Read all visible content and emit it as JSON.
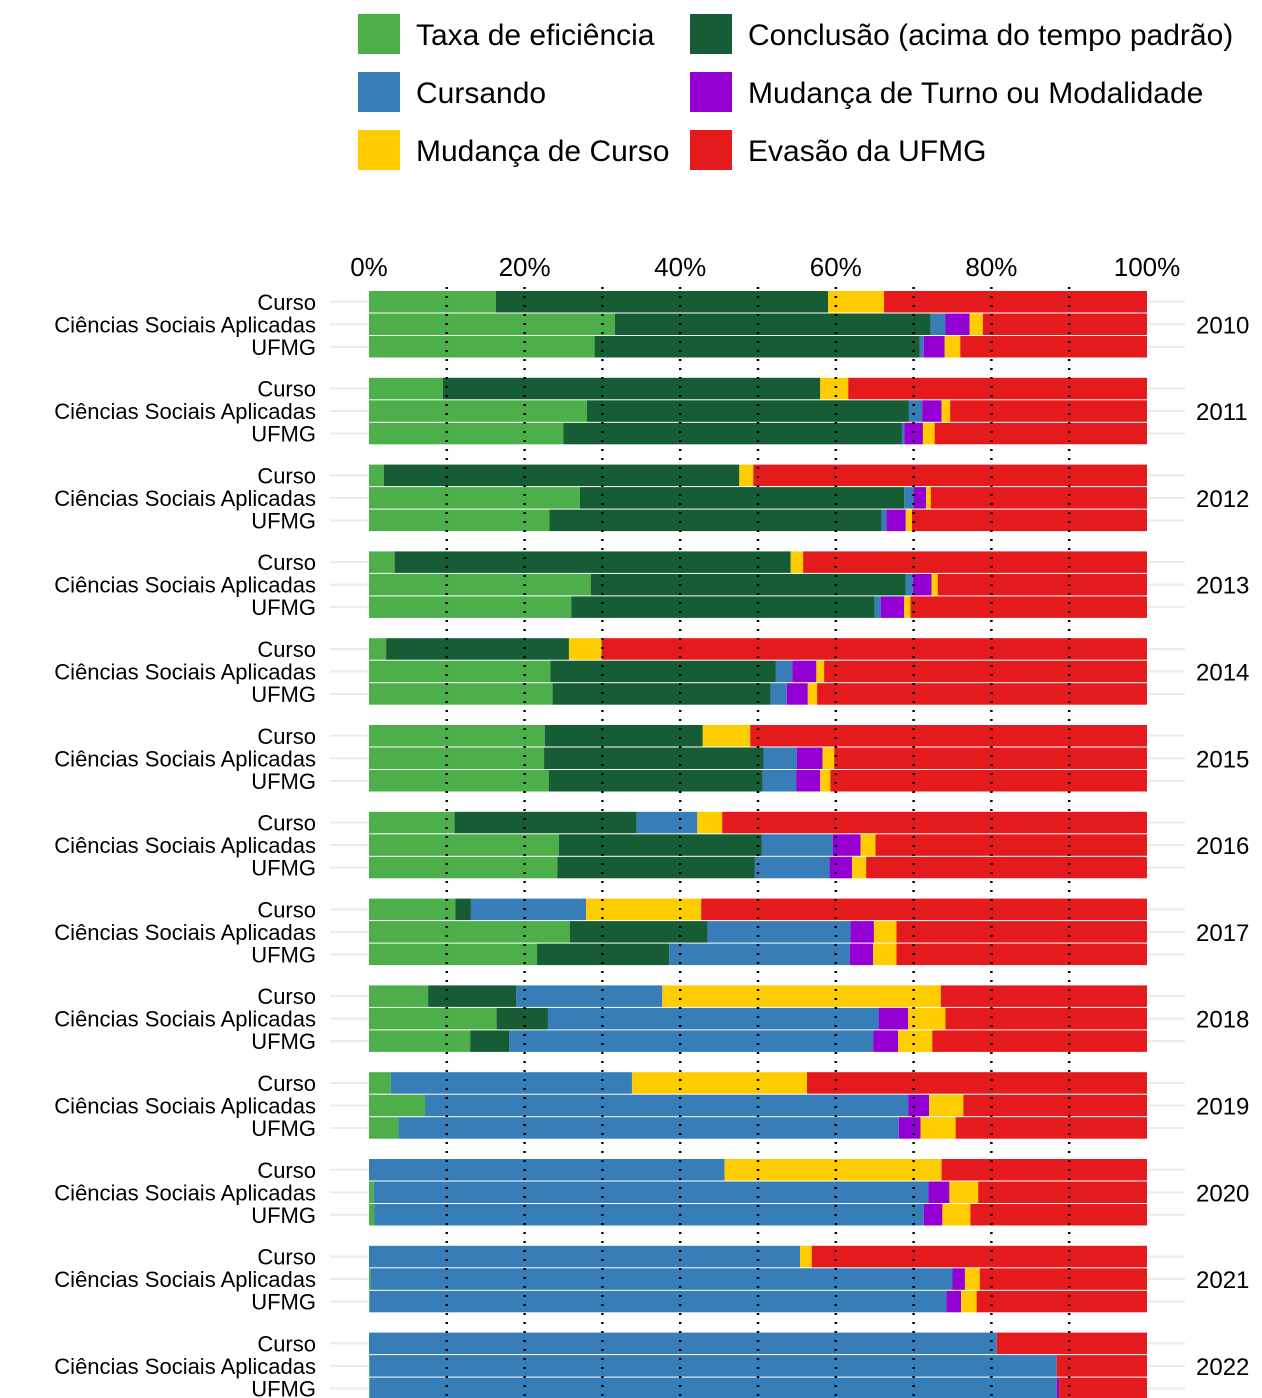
{
  "chart_data": {
    "type": "bar",
    "orientation": "horizontal",
    "stacked": true,
    "percent_scale": true,
    "xlim": [
      0,
      100
    ],
    "x_ticks": [
      "0%",
      "20%",
      "40%",
      "60%",
      "80%",
      "100%"
    ],
    "x_tick_values": [
      0,
      20,
      40,
      60,
      80,
      100
    ],
    "reference_lines": [
      10,
      20,
      30,
      40,
      50,
      60,
      70,
      80,
      90
    ],
    "grid": true,
    "legend_position": "top",
    "row_labels": [
      "Curso",
      "Ciências Sociais Aplicadas",
      "UFMG"
    ],
    "series": [
      {
        "key": "eficiencia",
        "name": "Taxa de eficiência",
        "color": "#4daf4a"
      },
      {
        "key": "conclusao",
        "name": "Conclusão (acima do tempo padrão)",
        "color": "#165c34"
      },
      {
        "key": "cursando",
        "name": "Cursando",
        "color": "#377eb8"
      },
      {
        "key": "turno",
        "name": "Mudança de Turno ou Modalidade",
        "color": "#9400d3"
      },
      {
        "key": "curso",
        "name": "Mudança de Curso",
        "color": "#ffcc00"
      },
      {
        "key": "evasao",
        "name": "Evasão da UFMG",
        "color": "#e41a1c"
      }
    ],
    "legend_order": [
      "eficiencia",
      "conclusao",
      "cursando",
      "turno",
      "curso",
      "evasao"
    ],
    "groups": [
      {
        "year": "2010",
        "rows": [
          [
            16.3,
            42.7,
            0,
            0,
            7.2,
            33.8
          ],
          [
            31.6,
            40.6,
            1.9,
            3.1,
            1.7,
            21.1
          ],
          [
            29.0,
            41.8,
            0.5,
            2.7,
            2.0,
            24.0
          ]
        ]
      },
      {
        "year": "2011",
        "rows": [
          [
            9.5,
            48.5,
            0,
            0,
            3.6,
            38.4
          ],
          [
            28.0,
            41.4,
            1.7,
            2.5,
            1.1,
            25.3
          ],
          [
            25.0,
            43.5,
            0.3,
            2.4,
            1.5,
            27.3
          ]
        ]
      },
      {
        "year": "2012",
        "rows": [
          [
            1.9,
            45.7,
            0,
            0,
            1.8,
            50.6
          ],
          [
            27.1,
            41.7,
            1.2,
            1.6,
            0.6,
            27.8
          ],
          [
            23.2,
            42.7,
            0.6,
            2.5,
            0.8,
            30.2
          ]
        ]
      },
      {
        "year": "2013",
        "rows": [
          [
            3.3,
            50.9,
            0,
            0,
            1.6,
            44.2
          ],
          [
            28.5,
            40.5,
            0.9,
            2.4,
            0.8,
            26.9
          ],
          [
            26.0,
            39.0,
            0.8,
            3.0,
            0.8,
            30.4
          ]
        ]
      },
      {
        "year": "2014",
        "rows": [
          [
            2.2,
            23.5,
            0,
            0,
            4.2,
            70.1
          ],
          [
            23.3,
            29.0,
            2.1,
            3.1,
            1.0,
            41.5
          ],
          [
            23.6,
            28.0,
            2.1,
            2.7,
            1.2,
            42.4
          ]
        ]
      },
      {
        "year": "2015",
        "rows": [
          [
            22.6,
            20.3,
            0,
            0,
            6.1,
            51.0
          ],
          [
            22.5,
            28.2,
            4.3,
            3.3,
            1.5,
            40.2
          ],
          [
            23.1,
            27.5,
            4.3,
            3.1,
            1.3,
            40.7
          ]
        ]
      },
      {
        "year": "2016",
        "rows": [
          [
            11.0,
            23.4,
            7.8,
            0,
            3.2,
            54.6
          ],
          [
            24.4,
            26.1,
            9.1,
            3.6,
            1.9,
            34.9
          ],
          [
            24.2,
            25.4,
            9.6,
            2.9,
            1.8,
            36.1
          ]
        ]
      },
      {
        "year": "2017",
        "rows": [
          [
            11.1,
            2.0,
            14.8,
            0,
            14.8,
            57.3
          ],
          [
            25.8,
            17.7,
            18.4,
            3.0,
            2.9,
            32.2
          ],
          [
            21.6,
            17.0,
            23.2,
            3.0,
            3.0,
            32.2
          ]
        ]
      },
      {
        "year": "2018",
        "rows": [
          [
            7.6,
            11.3,
            18.8,
            0,
            35.8,
            26.5
          ],
          [
            16.4,
            6.6,
            42.5,
            3.8,
            4.8,
            25.9
          ],
          [
            13.0,
            5.0,
            46.8,
            3.2,
            4.4,
            27.6
          ]
        ]
      },
      {
        "year": "2019",
        "rows": [
          [
            2.8,
            0,
            31.0,
            0,
            22.5,
            43.7
          ],
          [
            7.2,
            0,
            62.1,
            2.7,
            4.4,
            23.6
          ],
          [
            3.8,
            0,
            64.3,
            2.8,
            4.5,
            24.6
          ]
        ]
      },
      {
        "year": "2020",
        "rows": [
          [
            0,
            0,
            45.7,
            0,
            27.9,
            26.4
          ],
          [
            0.6,
            0,
            71.3,
            2.7,
            3.7,
            21.7
          ],
          [
            0.7,
            0,
            70.6,
            2.4,
            3.6,
            22.7
          ]
        ]
      },
      {
        "year": "2021",
        "rows": [
          [
            0,
            0,
            55.4,
            0,
            1.5,
            43.1
          ],
          [
            0.2,
            0,
            74.8,
            1.6,
            1.9,
            21.5
          ],
          [
            0.1,
            0,
            74.1,
            1.9,
            2.0,
            21.9
          ]
        ]
      },
      {
        "year": "2022",
        "rows": [
          [
            0,
            0,
            80.7,
            0,
            0,
            19.3
          ],
          [
            0.1,
            0,
            88.3,
            0,
            0,
            11.6
          ],
          [
            0.1,
            0,
            88.3,
            0.3,
            0,
            11.3
          ]
        ]
      }
    ]
  }
}
